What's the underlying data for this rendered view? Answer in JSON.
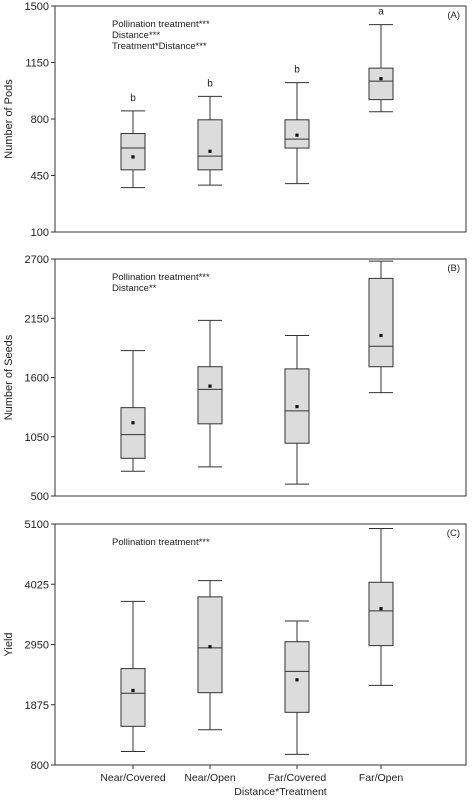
{
  "figure": {
    "xlabel": "Distance*Treatment",
    "categories": [
      "Near/Covered",
      "Near/Open",
      "Far/Covered",
      "Far/Open"
    ]
  },
  "chart_data": [
    {
      "type": "box",
      "panel_label": "(A)",
      "ylabel": "Number of Pods",
      "ylim": [
        100,
        1500
      ],
      "yticks": [
        100,
        450,
        800,
        1150,
        1500
      ],
      "annotations": [
        "Pollination treatment***",
        "Distance***",
        "Treatment*Distance***"
      ],
      "significance_letters": [
        "b",
        "b",
        "b",
        "a"
      ],
      "grid": false,
      "boxes": [
        {
          "category": "Near/Covered",
          "min": 375,
          "q1": 485,
          "median": 620,
          "q3": 710,
          "max": 850,
          "mean": 565
        },
        {
          "category": "Near/Open",
          "min": 390,
          "q1": 485,
          "median": 570,
          "q3": 795,
          "max": 940,
          "mean": 600
        },
        {
          "category": "Far/Covered",
          "min": 400,
          "q1": 620,
          "median": 675,
          "q3": 795,
          "max": 1025,
          "mean": 700
        },
        {
          "category": "Far/Open",
          "min": 845,
          "q1": 920,
          "median": 1035,
          "q3": 1115,
          "max": 1385,
          "mean": 1050
        }
      ]
    },
    {
      "type": "box",
      "panel_label": "(B)",
      "ylabel": "Number of Seeds",
      "ylim": [
        500,
        2700
      ],
      "yticks": [
        500,
        1050,
        1600,
        2150,
        2700
      ],
      "annotations": [
        "Pollination treatment***",
        "Distance**"
      ],
      "significance_letters": [],
      "grid": false,
      "boxes": [
        {
          "category": "Near/Covered",
          "min": 730,
          "q1": 850,
          "median": 1070,
          "q3": 1320,
          "max": 1850,
          "mean": 1180
        },
        {
          "category": "Near/Open",
          "min": 770,
          "q1": 1170,
          "median": 1490,
          "q3": 1700,
          "max": 2130,
          "mean": 1520
        },
        {
          "category": "Far/Covered",
          "min": 610,
          "q1": 990,
          "median": 1290,
          "q3": 1680,
          "max": 1990,
          "mean": 1330
        },
        {
          "category": "Far/Open",
          "min": 1460,
          "q1": 1700,
          "median": 1890,
          "q3": 2520,
          "max": 2680,
          "mean": 1990
        }
      ]
    },
    {
      "type": "box",
      "panel_label": "(C)",
      "ylabel": "Yield",
      "ylim": [
        800,
        5100
      ],
      "yticks": [
        800,
        1875,
        2950,
        4025,
        5100
      ],
      "annotations": [
        "Pollination treatment***"
      ],
      "significance_letters": [],
      "grid": false,
      "boxes": [
        {
          "category": "Near/Covered",
          "min": 1040,
          "q1": 1490,
          "median": 2080,
          "q3": 2520,
          "max": 3720,
          "mean": 2130
        },
        {
          "category": "Near/Open",
          "min": 1430,
          "q1": 2090,
          "median": 2890,
          "q3": 3800,
          "max": 4090,
          "mean": 2910
        },
        {
          "category": "Far/Covered",
          "min": 990,
          "q1": 1740,
          "median": 2470,
          "q3": 3000,
          "max": 3370,
          "mean": 2320
        },
        {
          "category": "Far/Open",
          "min": 2220,
          "q1": 2930,
          "median": 3550,
          "q3": 4060,
          "max": 5020,
          "mean": 3590
        }
      ]
    }
  ]
}
